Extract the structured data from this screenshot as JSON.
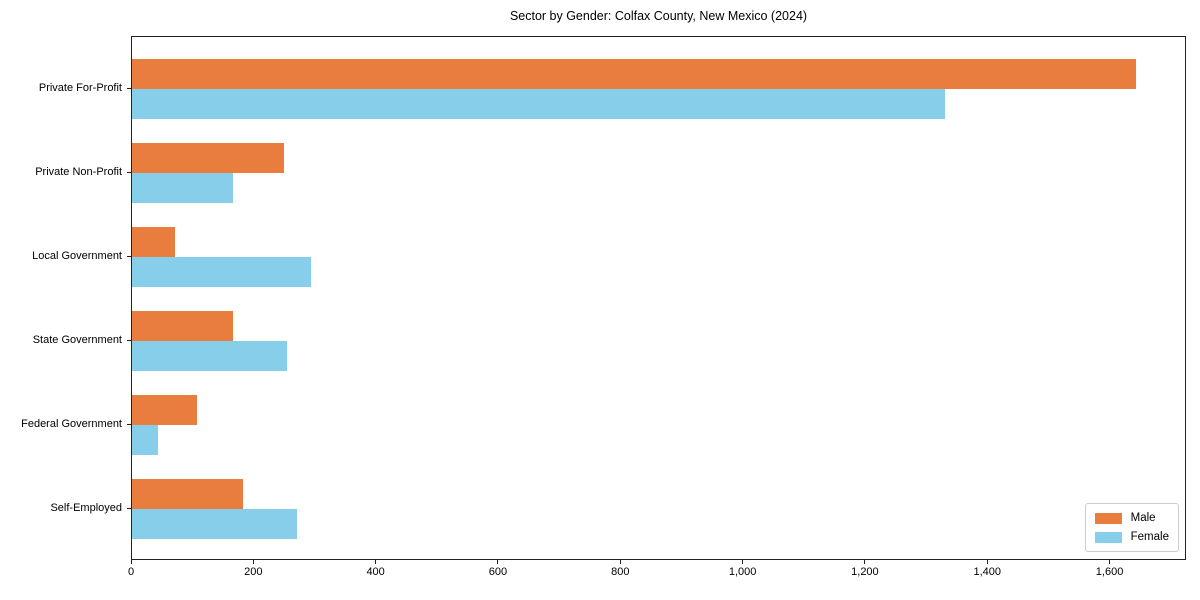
{
  "chart_data": {
    "type": "bar",
    "orientation": "horizontal",
    "title": "Sector by Gender: Colfax County, New Mexico (2024)",
    "xlabel": "",
    "ylabel": "",
    "categories": [
      "Private For-Profit",
      "Private Non-Profit",
      "Local Government",
      "State Government",
      "Federal Government",
      "Self-Employed"
    ],
    "series": [
      {
        "name": "Male",
        "color": "#e87d3e",
        "values": [
          1642,
          248,
          71,
          165,
          106,
          182
        ]
      },
      {
        "name": "Female",
        "color": "#87ceeb",
        "values": [
          1330,
          165,
          293,
          253,
          43,
          269
        ]
      }
    ],
    "xlim": [
      0,
      1725
    ],
    "x_ticks": [
      0,
      200,
      400,
      600,
      800,
      1000,
      1200,
      1400,
      1600
    ],
    "x_tick_labels": [
      "0",
      "200",
      "400",
      "600",
      "800",
      "1,000",
      "1,200",
      "1,400",
      "1,600"
    ],
    "grid": false,
    "legend_position": "lower right"
  },
  "legend": {
    "items": [
      {
        "label": "Male",
        "color": "#e87d3e"
      },
      {
        "label": "Female",
        "color": "#87ceeb"
      }
    ]
  }
}
